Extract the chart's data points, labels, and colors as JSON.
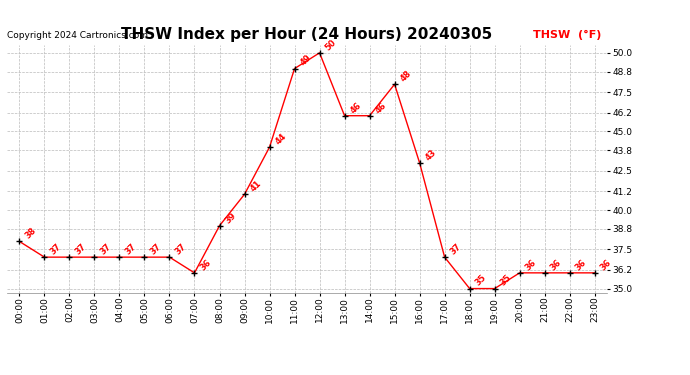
{
  "title": "THSW Index per Hour (24 Hours) 20240305",
  "copyright": "Copyright 2024 Cartronics.com",
  "legend_label": "THSW  (°F)",
  "line_color": "#ff0000",
  "marker_color": "#000000",
  "background_color": "#ffffff",
  "grid_color": "#bbbbbb",
  "hours": [
    0,
    1,
    2,
    3,
    4,
    5,
    6,
    7,
    8,
    9,
    10,
    11,
    12,
    13,
    14,
    15,
    16,
    17,
    18,
    19,
    20,
    21,
    22,
    23
  ],
  "values": [
    38,
    37,
    37,
    37,
    37,
    37,
    37,
    36,
    39,
    41,
    44,
    49,
    50,
    46,
    46,
    48,
    43,
    37,
    35,
    35,
    36,
    36,
    36,
    36
  ],
  "ylim_min": 34.75,
  "ylim_max": 50.5,
  "yticks": [
    35.0,
    36.2,
    37.5,
    38.8,
    40.0,
    41.2,
    42.5,
    43.8,
    45.0,
    46.2,
    47.5,
    48.8,
    50.0
  ],
  "title_fontsize": 11,
  "tick_fontsize": 6.5,
  "copyright_fontsize": 6.5,
  "legend_fontsize": 8,
  "annotation_fontsize": 6,
  "plot_bg_color": "#ffffff"
}
